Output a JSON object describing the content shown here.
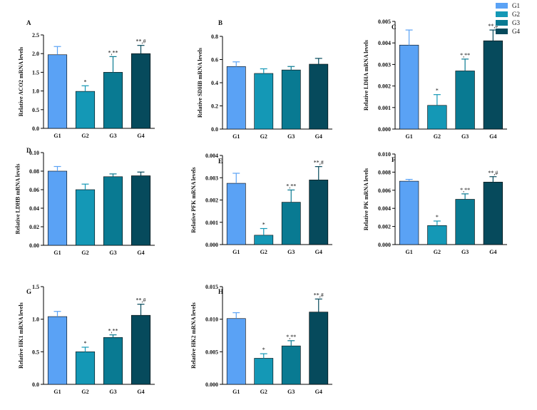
{
  "colors": {
    "G1": "#5aa2f5",
    "G2": "#1498b6",
    "G3": "#097a92",
    "G4": "#064a5c"
  },
  "legend": [
    {
      "label": "G1",
      "color_key": "G1"
    },
    {
      "label": "G2",
      "color_key": "G2"
    },
    {
      "label": "G3",
      "color_key": "G3"
    },
    {
      "label": "G4",
      "color_key": "G4"
    }
  ],
  "chart_data": [
    {
      "panel": "A",
      "type": "bar",
      "categories": [
        "G1",
        "G2",
        "G3",
        "G4"
      ],
      "values": [
        1.97,
        0.99,
        1.5,
        2.0
      ],
      "errors": [
        0.22,
        0.15,
        0.42,
        0.22
      ],
      "annotations": [
        "",
        "*",
        "*,**",
        "**,#"
      ],
      "ylabel": "Relative ACO2 mRNA levels",
      "ylim": [
        0,
        2.5
      ],
      "yticks": [
        "0.0",
        "0.5",
        "1.0",
        "1.5",
        "2.0",
        "2.5"
      ]
    },
    {
      "panel": "B",
      "type": "bar",
      "categories": [
        "G1",
        "G2",
        "G3",
        "G4"
      ],
      "values": [
        0.54,
        0.48,
        0.51,
        0.56
      ],
      "errors": [
        0.04,
        0.04,
        0.03,
        0.05
      ],
      "annotations": [
        "",
        "",
        "",
        ""
      ],
      "ylabel": "Relative SDHB mRNA levels",
      "ylim": [
        0,
        0.8
      ],
      "yticks": [
        "0.0",
        "0.2",
        "0.4",
        "0.6",
        "0.8"
      ]
    },
    {
      "panel": "C",
      "type": "bar",
      "categories": [
        "G1",
        "G2",
        "G3",
        "G4"
      ],
      "values": [
        0.0039,
        0.0011,
        0.0027,
        0.0041
      ],
      "errors": [
        0.0007,
        0.0005,
        0.00055,
        0.0005
      ],
      "annotations": [
        "",
        "*",
        "*,**",
        "**,#"
      ],
      "ylabel": "Relative LDHA mRNA levels",
      "ylim": [
        0,
        0.005
      ],
      "yticks": [
        "0.000",
        "0.001",
        "0.002",
        "0.003",
        "0.004",
        "0.005"
      ]
    },
    {
      "panel": "D",
      "type": "bar",
      "categories": [
        "G1",
        "G2",
        "G3",
        "G4"
      ],
      "values": [
        0.08,
        0.06,
        0.074,
        0.075
      ],
      "errors": [
        0.005,
        0.006,
        0.003,
        0.004
      ],
      "annotations": [
        "",
        "",
        "",
        ""
      ],
      "ylabel": "Relative LDHB mRNA levels",
      "ylim": [
        0,
        0.1
      ],
      "yticks": [
        "0.00",
        "0.02",
        "0.04",
        "0.06",
        "0.08",
        "0.10"
      ]
    },
    {
      "panel": "E",
      "type": "bar",
      "categories": [
        "G1",
        "G2",
        "G3",
        "G4"
      ],
      "values": [
        0.00275,
        0.00042,
        0.0019,
        0.0029
      ],
      "errors": [
        0.00045,
        0.0003,
        0.00055,
        0.0006
      ],
      "annotations": [
        "",
        "*",
        "*,**",
        "**,#"
      ],
      "ylabel": "Relative PFK mRNA levels",
      "ylim": [
        0,
        0.004
      ],
      "yticks": [
        "0.000",
        "0.001",
        "0.002",
        "0.003",
        "0.004"
      ]
    },
    {
      "panel": "F",
      "type": "bar",
      "categories": [
        "G1",
        "G2",
        "G3",
        "G4"
      ],
      "values": [
        0.007,
        0.0021,
        0.005,
        0.0069
      ],
      "errors": [
        0.0002,
        0.0005,
        0.0006,
        0.0006
      ],
      "annotations": [
        "",
        "*",
        "*,**",
        "**,#"
      ],
      "ylabel": "Relative PK mRNA levels",
      "ylim": [
        0,
        0.01
      ],
      "yticks": [
        "0.000",
        "0.002",
        "0.004",
        "0.006",
        "0.008",
        "0.010"
      ]
    },
    {
      "panel": "G",
      "type": "bar",
      "categories": [
        "G1",
        "G2",
        "G3",
        "G4"
      ],
      "values": [
        1.04,
        0.5,
        0.72,
        1.06
      ],
      "errors": [
        0.08,
        0.07,
        0.04,
        0.17
      ],
      "annotations": [
        "",
        "*",
        "*,**",
        "**,#"
      ],
      "ylabel": "Relative HK1 mRNA levels",
      "ylim": [
        0,
        1.5
      ],
      "yticks": [
        "0.0",
        "0.5",
        "1.0",
        "1.5"
      ]
    },
    {
      "panel": "H",
      "type": "bar",
      "categories": [
        "G1",
        "G2",
        "G3",
        "G4"
      ],
      "values": [
        0.0101,
        0.004,
        0.0059,
        0.0111
      ],
      "errors": [
        0.0009,
        0.0007,
        0.0008,
        0.002
      ],
      "annotations": [
        "",
        "*",
        "*,**",
        "**,#"
      ],
      "ylabel": "Relative HK2 mRNA levels",
      "ylim": [
        0,
        0.015
      ],
      "yticks": [
        "0.000",
        "0.005",
        "0.010",
        "0.015"
      ]
    }
  ]
}
